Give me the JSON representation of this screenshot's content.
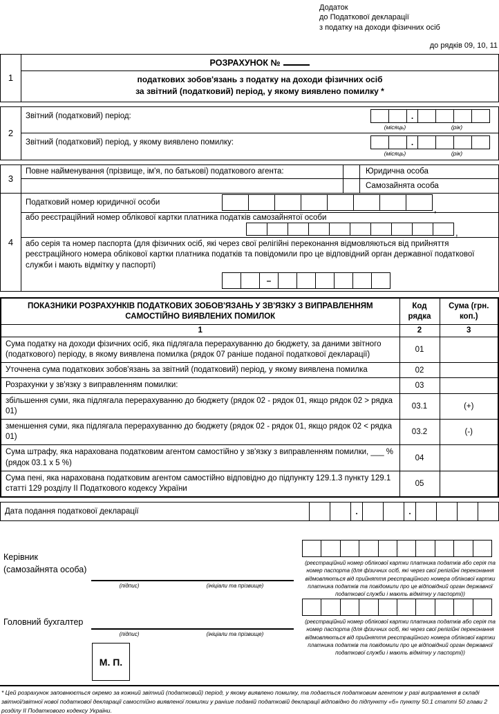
{
  "punct": {
    "dot": ".",
    "dash": "–",
    "comma": ","
  },
  "header": {
    "line1": "Додаток",
    "line2": "до Податкової декларації",
    "line3": "з податку на доходи фізичних осіб",
    "rows_ref": "до рядків 09, 10, 11"
  },
  "section1": {
    "num": "1",
    "title": "РОЗРАХУНОК №",
    "subtitle1": "податкових зобов'язань з податку на доходи фізичних осіб",
    "subtitle2": "за звітний (податковий) період, у якому виявлено помилку *"
  },
  "section2": {
    "num": "2",
    "row1_label": "Звітний (податковий) період:",
    "row2_label": "Звітний (податковий) період, у якому виявлено помилку:",
    "month_label": "(місяць)",
    "year_label": "(рік)"
  },
  "section3": {
    "num": "3",
    "label": "Повне найменування (прізвище, ім'я, по батькові) податкового агента:",
    "option1": "Юридична особа",
    "option2": "Самозайнята особа"
  },
  "section4": {
    "num": "4",
    "row1_label": "Податковий номер юридичної особи",
    "row2_label": "або реєстраційний номер облікової картки платника податків самозайнятої особи",
    "row3_label": "або серія та номер паспорта (для фізичних осіб, які через свої релігійні переконання відмовляються від прийняття реєстраційного номера облікової картки платника податків та повідомили про це відповідний орган державної податкової служби і мають відмітку у паспорті)"
  },
  "table": {
    "header_main": "ПОКАЗНИКИ РОЗРАХУНКІВ ПОДАТКОВИХ ЗОБОВ'ЯЗАНЬ У ЗВ'ЯЗКУ З ВИПРАВЛЕННЯМ САМОСТІЙНО ВИЯВЛЕНИХ ПОМИЛОК",
    "header_code": "Код рядка",
    "header_sum": "Сума (грн. коп.)",
    "col_nums": [
      "1",
      "2",
      "3"
    ],
    "rows": [
      {
        "label": "Сума податку на доходи фізичних осіб, яка підлягала перерахуванню до бюджету, за даними звітного (податкового) періоду, в якому виявлена помилка (рядок 07 раніше поданої податкової декларації)",
        "code": "01",
        "sum": ""
      },
      {
        "label": "Уточнена сума податкових зобов'язань за звітний (податковий) період, у якому виявлена помилка",
        "code": "02",
        "sum": ""
      },
      {
        "label": "Розрахунки у зв'язку з виправленням помилки:",
        "code": "03",
        "sum": ""
      },
      {
        "label": "збільшення суми, яка підлягала перерахуванню до бюджету (рядок 02 - рядок 01, якщо рядок 02 > рядка 01)",
        "code": "03.1",
        "sum": "(+)"
      },
      {
        "label": "зменшення суми, яка підлягала перерахуванню до бюджету (рядок 02 - рядок 01, якщо рядок 02 < рядка 01)",
        "code": "03.2",
        "sum": "(-)"
      },
      {
        "label": "Сума штрафу, яка нарахована податковим агентом самостійно у зв'язку з виправленням помилки, ___ % (рядок 03.1 х 5 %)",
        "code": "04",
        "sum": ""
      },
      {
        "label": "Сума пені, яка нарахована податковим агентом самостійно відповідно до підпункту 129.1.3 пункту 129.1 статті 129 розділу II Податкового кодексу України",
        "code": "05",
        "sum": ""
      }
    ]
  },
  "date_row": {
    "label": "Дата подання податкової декларації"
  },
  "signatures": {
    "head_label1": "Керівник",
    "head_label2": "(самозайнята особа)",
    "accountant_label": "Головний бухгалтер",
    "sign_label": "(підпис)",
    "name_label": "(ініціали та прізвище)",
    "reg_note": "(реєстраційний номер облікової картки платника податків або серія та номер паспорта (для фізичних осіб, які через свої релігійні переконання відмовляються від прийняття реєстраційного номера облікової картки платника податків та повідомили про це відповідний орган державної податкової служби і мають відмітку у паспорті))",
    "seal": "М. П."
  },
  "footnote": "* Цей розрахунок заповнюється окремо за кожний звітний (податковий) період, у якому виявлено помилку, та подається податковим агентом у разі виправлення в складі звітної/звітної нової податкової декларації самостійно виявленої помилки у раніше поданій податковій декларації відповідно до підпункту «б» пункту 50.1 статті 50 глави 2 розділу II Податкового кодексу України."
}
